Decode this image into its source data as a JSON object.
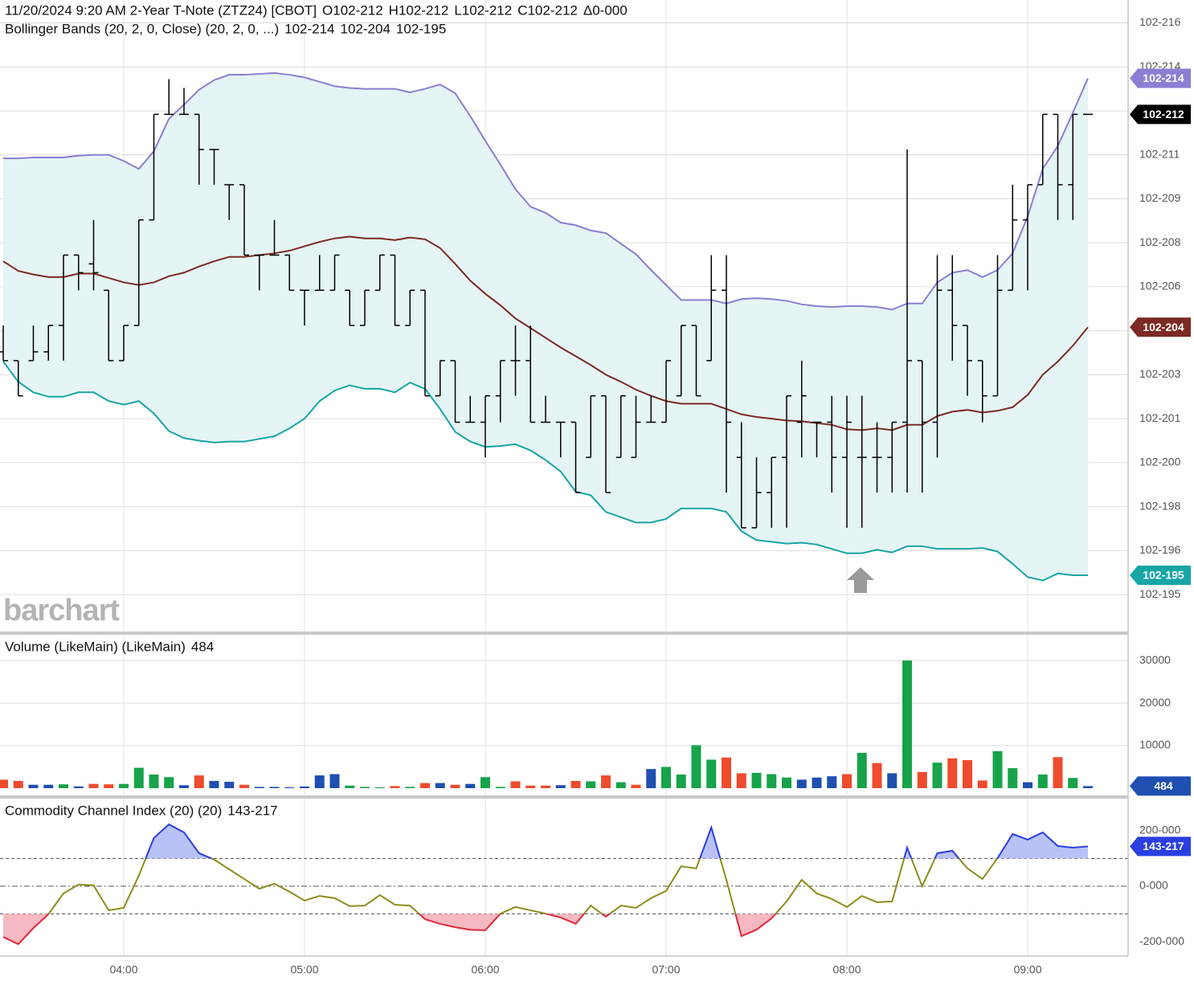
{
  "chart_data": [
    {
      "type": "ohlc",
      "title": "11/20/2024 9:20 AM 2-Year T-Note (ZTZ24) [CBOT]",
      "quote": [
        "O102-212",
        "H102-212",
        "L102-212",
        "C102-212",
        "Δ0-000"
      ],
      "subtitle": "Bollinger Bands (20, 2, 0, Close)  (20, 2, 0, ...)",
      "watermark": "barchart",
      "last_price_label": "102-212",
      "color": "#000000",
      "categories": [
        null,
        null,
        null,
        null,
        null,
        null,
        null,
        null,
        "04:00",
        null,
        null,
        null,
        null,
        null,
        null,
        null,
        null,
        null,
        null,
        null,
        "05:00",
        null,
        null,
        null,
        null,
        null,
        null,
        null,
        null,
        null,
        null,
        null,
        "06:00",
        null,
        null,
        null,
        null,
        null,
        null,
        null,
        null,
        null,
        null,
        null,
        "07:00",
        null,
        null,
        null,
        null,
        null,
        null,
        null,
        null,
        null,
        null,
        null,
        "08:00",
        null,
        null,
        null,
        null,
        null,
        null,
        null,
        null,
        null,
        null,
        null,
        "09:00",
        null,
        null,
        null,
        null
      ],
      "open": [
        102.6376,
        102.6366,
        102.6366,
        102.6376,
        102.6406,
        102.6486,
        102.6476,
        102.6446,
        102.6366,
        102.6406,
        102.6526,
        102.6646,
        102.6646,
        102.6646,
        102.6606,
        102.6566,
        102.6566,
        102.6486,
        102.6486,
        102.6486,
        102.6446,
        102.6446,
        102.6446,
        102.6446,
        102.6406,
        102.6446,
        102.6486,
        102.6406,
        102.6446,
        102.6326,
        102.6366,
        102.6296,
        102.6296,
        102.6326,
        102.6366,
        102.6366,
        102.6296,
        102.6296,
        102.6296,
        102.6256,
        102.6326,
        102.6256,
        102.6256,
        102.6296,
        102.6296,
        102.6326,
        102.6406,
        102.6366,
        102.6446,
        102.6256,
        102.6176,
        102.6216,
        102.6256,
        102.6296,
        102.6296,
        102.6296,
        102.6256,
        102.6256,
        102.6256,
        102.6256,
        102.6296,
        102.6366,
        102.6296,
        102.6446,
        102.6406,
        102.6366,
        102.6326,
        102.6446,
        102.6526,
        102.6566,
        102.6646,
        102.6566,
        102.6646
      ],
      "high": [
        102.6406,
        102.6366,
        102.6406,
        102.6406,
        102.6486,
        102.6486,
        102.6526,
        102.6446,
        102.6406,
        102.6526,
        102.6646,
        102.6686,
        102.6676,
        102.6646,
        102.6606,
        102.6566,
        102.6566,
        102.6486,
        102.6526,
        102.6486,
        102.6446,
        102.6486,
        102.6486,
        102.6446,
        102.6446,
        102.6486,
        102.6486,
        102.6446,
        102.6446,
        102.6366,
        102.6366,
        102.6326,
        102.6326,
        102.6366,
        102.6406,
        102.6406,
        102.6326,
        102.6296,
        102.6296,
        102.6326,
        102.6326,
        102.6326,
        102.6326,
        102.6326,
        102.6366,
        102.6406,
        102.6406,
        102.6486,
        102.6486,
        102.6296,
        102.6256,
        102.6256,
        102.6326,
        102.6366,
        102.6296,
        102.6326,
        102.6326,
        102.6326,
        102.6296,
        102.6296,
        102.6606,
        102.6366,
        102.6486,
        102.6486,
        102.6406,
        102.6366,
        102.6486,
        102.6566,
        102.6566,
        102.6646,
        102.6646,
        102.6646,
        102.6646
      ],
      "low": [
        102.6366,
        102.6326,
        102.6366,
        102.6366,
        102.6366,
        102.6446,
        102.6446,
        102.6366,
        102.6366,
        102.6406,
        102.6526,
        102.6646,
        102.6646,
        102.6566,
        102.6566,
        102.6526,
        102.6486,
        102.6446,
        102.6486,
        102.6446,
        102.6406,
        102.6446,
        102.6446,
        102.6406,
        102.6406,
        102.6446,
        102.6406,
        102.6406,
        102.6326,
        102.6326,
        102.6296,
        102.6296,
        102.6256,
        102.6296,
        102.6326,
        102.6296,
        102.6296,
        102.6256,
        102.6216,
        102.6256,
        102.6216,
        102.6256,
        102.6256,
        102.6296,
        102.6296,
        102.6326,
        102.6326,
        102.6366,
        102.6216,
        102.6176,
        102.6176,
        102.6176,
        102.6176,
        102.6256,
        102.6256,
        102.6216,
        102.6176,
        102.6176,
        102.6216,
        102.6216,
        102.6216,
        102.6216,
        102.6256,
        102.6366,
        102.6326,
        102.6296,
        102.6326,
        102.6446,
        102.6446,
        102.6566,
        102.6526,
        102.6526,
        102.6646
      ],
      "close": [
        102.6366,
        102.6326,
        102.6376,
        102.6406,
        102.6486,
        102.6466,
        102.6466,
        102.6366,
        102.6406,
        102.6526,
        102.6646,
        102.6646,
        102.6646,
        102.6606,
        102.6606,
        102.6566,
        102.6486,
        102.6486,
        102.6486,
        102.6446,
        102.6446,
        102.6446,
        102.6486,
        102.6406,
        102.6446,
        102.6486,
        102.6406,
        102.6446,
        102.6326,
        102.6366,
        102.6296,
        102.6296,
        102.6326,
        102.6366,
        102.6366,
        102.6296,
        102.6296,
        102.6296,
        102.6216,
        102.6326,
        102.6216,
        102.6326,
        102.6296,
        102.6296,
        102.6366,
        102.6406,
        102.6326,
        102.6446,
        102.6296,
        102.6176,
        102.6216,
        102.6256,
        102.6326,
        102.6326,
        102.6296,
        102.6256,
        102.6296,
        102.6256,
        102.6256,
        102.6296,
        102.6366,
        102.6296,
        102.6446,
        102.6406,
        102.6366,
        102.6326,
        102.6446,
        102.6526,
        102.6566,
        102.6646,
        102.6566,
        102.6646,
        102.6646
      ],
      "series": [
        {
          "color": "#8a7fd3",
          "last_label": "102-214",
          "values": [
            102.6596,
            102.6596,
            102.6597,
            102.6597,
            102.6597,
            102.6599,
            102.66,
            102.66,
            102.6593,
            102.6584,
            102.6604,
            102.6641,
            102.6657,
            102.6674,
            102.6685,
            102.6691,
            102.6691,
            102.6692,
            102.6693,
            102.6691,
            102.6688,
            102.6683,
            102.6678,
            102.6676,
            102.6675,
            102.6675,
            102.6675,
            102.6671,
            102.6675,
            102.668,
            102.667,
            102.6644,
            102.6616,
            102.6589,
            102.6561,
            102.6541,
            102.6534,
            102.6523,
            102.652,
            102.6514,
            102.6511,
            102.6499,
            102.6487,
            102.6469,
            102.6452,
            102.6435,
            102.6435,
            102.6435,
            102.6431,
            102.6436,
            102.6437,
            102.6436,
            102.6434,
            102.643,
            102.6428,
            102.6427,
            102.6428,
            102.6428,
            102.6427,
            102.6424,
            102.6431,
            102.6431,
            102.6455,
            102.6466,
            102.6469,
            102.6461,
            102.6469,
            102.6488,
            102.653,
            102.6584,
            102.661,
            102.6648,
            102.6687
          ]
        },
        {
          "color": "#7b2a24",
          "last_label": "102-204",
          "values": [
            102.6479,
            102.6468,
            102.6464,
            102.6461,
            102.6461,
            102.6465,
            102.6465,
            102.646,
            102.6455,
            102.6452,
            102.6455,
            102.6462,
            102.6466,
            102.6473,
            102.6479,
            102.6484,
            102.6484,
            102.6486,
            102.6488,
            102.6491,
            102.6496,
            102.6501,
            102.6505,
            102.6507,
            102.6505,
            102.6505,
            102.6503,
            102.6506,
            102.6504,
            102.6494,
            102.6476,
            102.6457,
            102.6442,
            102.6429,
            102.6414,
            102.6403,
            102.6392,
            102.6381,
            102.6371,
            102.6361,
            102.635,
            102.6342,
            102.6333,
            102.6326,
            102.632,
            102.6317,
            102.6317,
            102.6317,
            102.6311,
            102.6305,
            102.6302,
            102.63,
            102.6298,
            102.6297,
            102.6295,
            102.6293,
            102.6288,
            102.6287,
            102.6289,
            102.6287,
            102.6293,
            102.6293,
            102.6303,
            102.6308,
            102.631,
            102.6307,
            102.6309,
            102.6313,
            102.6327,
            102.635,
            102.6365,
            102.6383,
            102.6404
          ]
        },
        {
          "color": "#17a5a5",
          "last_label": "102-195",
          "values": [
            102.6365,
            102.6342,
            102.633,
            102.6325,
            102.6325,
            102.633,
            102.633,
            102.632,
            102.6316,
            102.632,
            102.6306,
            102.6286,
            102.6278,
            102.6275,
            102.6273,
            102.6274,
            102.6274,
            102.6277,
            102.628,
            102.6289,
            102.63,
            102.632,
            102.6332,
            102.6338,
            102.6334,
            102.6334,
            102.633,
            102.6341,
            102.6334,
            102.6311,
            102.6285,
            102.6274,
            102.6268,
            102.6269,
            102.6271,
            102.6264,
            102.6253,
            102.624,
            102.6217,
            102.6213,
            102.6194,
            102.6188,
            102.6182,
            102.6182,
            102.6186,
            102.6198,
            102.6198,
            102.6198,
            102.6194,
            102.6172,
            102.6162,
            102.616,
            102.6158,
            102.6159,
            102.6157,
            102.6152,
            102.6147,
            102.6147,
            102.6151,
            102.6148,
            102.6155,
            102.6155,
            102.6152,
            102.6152,
            102.6152,
            102.6153,
            102.6149,
            102.6135,
            102.612,
            102.6116,
            102.6124,
            102.6122,
            102.6122
          ]
        }
      ],
      "band_fill": "#e5f4f4",
      "ylim": [
        102.6059,
        102.6776
      ],
      "yticks": [
        {
          "value": 102.675,
          "label": "102-216"
        },
        {
          "value": 102.67,
          "label": "102-214"
        },
        {
          "value": 102.665,
          "label": "102-212"
        },
        {
          "value": 102.66,
          "label": "102-211"
        },
        {
          "value": 102.655,
          "label": "102-209"
        },
        {
          "value": 102.65,
          "label": "102-208"
        },
        {
          "value": 102.645,
          "label": "102-206"
        },
        {
          "value": 102.64,
          "label": "102-204"
        },
        {
          "value": 102.635,
          "label": "102-203"
        },
        {
          "value": 102.63,
          "label": "102-201"
        },
        {
          "value": 102.625,
          "label": "102-200"
        },
        {
          "value": 102.62,
          "label": "102-198"
        },
        {
          "value": 102.615,
          "label": "102-196"
        },
        {
          "value": 102.61,
          "label": "102-195"
        }
      ],
      "grid": true
    },
    {
      "type": "bar",
      "title": "Volume (LikeMain)  (LikeMain)",
      "values": [
        2000,
        1700,
        800,
        800,
        900,
        400,
        1000,
        900,
        1000,
        4800,
        3200,
        2600,
        700,
        3000,
        1700,
        1500,
        800,
        300,
        300,
        200,
        400,
        3000,
        3300,
        600,
        300,
        200,
        500,
        300,
        1200,
        1200,
        800,
        1000,
        2600,
        300,
        1600,
        600,
        600,
        700,
        1700,
        1600,
        3000,
        1400,
        800,
        4500,
        5000,
        3200,
        10100,
        6700,
        7200,
        3500,
        3600,
        3300,
        2500,
        2000,
        2500,
        2800,
        3300,
        8300,
        5900,
        3500,
        30000,
        3800,
        6000,
        7000,
        6600,
        1800,
        8700,
        4700,
        1400,
        3200,
        7300,
        2400,
        484
      ],
      "colors": [
        "#ef4b2e",
        "#ef4b2e",
        "#1f4fb0",
        "#1f4fb0",
        "#17a34a",
        "#1f4fb0",
        "#ef4b2e",
        "#ef4b2e",
        "#17a34a",
        "#17a34a",
        "#17a34a",
        "#17a34a",
        "#1f4fb0",
        "#ef4b2e",
        "#1f4fb0",
        "#1f4fb0",
        "#ef4b2e",
        "#1f4fb0",
        "#1f4fb0",
        "#1f4fb0",
        "#1f4fb0",
        "#1f4fb0",
        "#1f4fb0",
        "#17a34a",
        "#17a34a",
        "#17a34a",
        "#ef4b2e",
        "#17a34a",
        "#ef4b2e",
        "#1f4fb0",
        "#ef4b2e",
        "#1f4fb0",
        "#17a34a",
        "#17a34a",
        "#ef4b2e",
        "#ef4b2e",
        "#ef4b2e",
        "#1f4fb0",
        "#ef4b2e",
        "#17a34a",
        "#ef4b2e",
        "#17a34a",
        "#ef4b2e",
        "#1f4fb0",
        "#17a34a",
        "#17a34a",
        "#17a34a",
        "#17a34a",
        "#ef4b2e",
        "#ef4b2e",
        "#17a34a",
        "#17a34a",
        "#17a34a",
        "#1f4fb0",
        "#1f4fb0",
        "#1f4fb0",
        "#ef4b2e",
        "#17a34a",
        "#ef4b2e",
        "#1f4fb0",
        "#17a34a",
        "#ef4b2e",
        "#17a34a",
        "#ef4b2e",
        "#ef4b2e",
        "#ef4b2e",
        "#17a34a",
        "#17a34a",
        "#1f4fb0",
        "#17a34a",
        "#ef4b2e",
        "#17a34a",
        "#1f4fb0"
      ],
      "label_color": "#1f4fb0",
      "ylim": [
        0,
        35500
      ],
      "yticks": [
        10000,
        20000,
        30000
      ],
      "grid": true
    },
    {
      "type": "line",
      "title": "Commodity Channel Index (20)  (20)",
      "last_label": "143-217",
      "color": "#8c8c1c",
      "high_color": "#2a3fe0",
      "high_fill": "#b9c2f6",
      "low_color": "#e0283a",
      "low_fill": "#f6b9c2",
      "overbought": 100,
      "oversold": -100,
      "midline": 0,
      "values": [
        -183,
        -209,
        -151,
        -101,
        -26,
        6,
        3,
        -87,
        -78,
        38,
        174,
        223,
        194,
        119,
        96,
        61,
        26,
        -9,
        9,
        -20,
        -52,
        -35,
        -43,
        -72,
        -70,
        -32,
        -67,
        -70,
        -119,
        -136,
        -148,
        -157,
        -159,
        -99,
        -75,
        -87,
        -99,
        -113,
        -136,
        -70,
        -110,
        -70,
        -78,
        -43,
        -17,
        72,
        64,
        212,
        23,
        -180,
        -157,
        -116,
        -55,
        23,
        -26,
        -46,
        -75,
        -35,
        -58,
        -55,
        139,
        0,
        119,
        128,
        64,
        26,
        101,
        188,
        168,
        194,
        145,
        139,
        143.68
      ],
      "ylim": [
        -252,
        313
      ],
      "yticks": [
        {
          "value": 200,
          "label": "200-000"
        },
        {
          "value": 0,
          "label": "0-000"
        },
        {
          "value": -200,
          "label": "-200-000"
        }
      ],
      "grid": true
    }
  ]
}
